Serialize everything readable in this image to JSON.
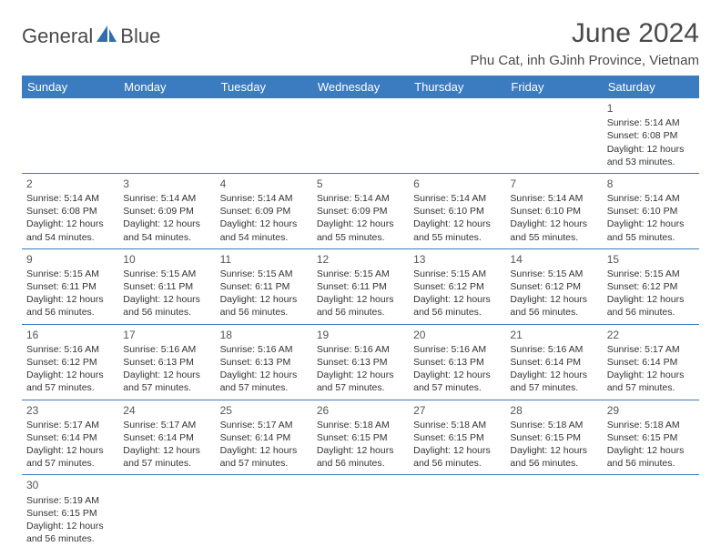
{
  "brand": {
    "text1": "General",
    "text2": "Blue",
    "icon_color": "#2f6fb0",
    "text_color": "#4a4a4a"
  },
  "title": "June 2024",
  "location": "Phu Cat, inh GJinh Province, Vietnam",
  "header_bg": "#3b7bbf",
  "header_text_color": "#ffffff",
  "border_color": "#3b7bbf",
  "cell_text_color": "#333333",
  "day_headers": [
    "Sunday",
    "Monday",
    "Tuesday",
    "Wednesday",
    "Thursday",
    "Friday",
    "Saturday"
  ],
  "weeks": [
    [
      null,
      null,
      null,
      null,
      null,
      null,
      {
        "n": "1",
        "sr": "5:14 AM",
        "ss": "6:08 PM",
        "dl": "12 hours and 53 minutes."
      }
    ],
    [
      {
        "n": "2",
        "sr": "5:14 AM",
        "ss": "6:08 PM",
        "dl": "12 hours and 54 minutes."
      },
      {
        "n": "3",
        "sr": "5:14 AM",
        "ss": "6:09 PM",
        "dl": "12 hours and 54 minutes."
      },
      {
        "n": "4",
        "sr": "5:14 AM",
        "ss": "6:09 PM",
        "dl": "12 hours and 54 minutes."
      },
      {
        "n": "5",
        "sr": "5:14 AM",
        "ss": "6:09 PM",
        "dl": "12 hours and 55 minutes."
      },
      {
        "n": "6",
        "sr": "5:14 AM",
        "ss": "6:10 PM",
        "dl": "12 hours and 55 minutes."
      },
      {
        "n": "7",
        "sr": "5:14 AM",
        "ss": "6:10 PM",
        "dl": "12 hours and 55 minutes."
      },
      {
        "n": "8",
        "sr": "5:14 AM",
        "ss": "6:10 PM",
        "dl": "12 hours and 55 minutes."
      }
    ],
    [
      {
        "n": "9",
        "sr": "5:15 AM",
        "ss": "6:11 PM",
        "dl": "12 hours and 56 minutes."
      },
      {
        "n": "10",
        "sr": "5:15 AM",
        "ss": "6:11 PM",
        "dl": "12 hours and 56 minutes."
      },
      {
        "n": "11",
        "sr": "5:15 AM",
        "ss": "6:11 PM",
        "dl": "12 hours and 56 minutes."
      },
      {
        "n": "12",
        "sr": "5:15 AM",
        "ss": "6:11 PM",
        "dl": "12 hours and 56 minutes."
      },
      {
        "n": "13",
        "sr": "5:15 AM",
        "ss": "6:12 PM",
        "dl": "12 hours and 56 minutes."
      },
      {
        "n": "14",
        "sr": "5:15 AM",
        "ss": "6:12 PM",
        "dl": "12 hours and 56 minutes."
      },
      {
        "n": "15",
        "sr": "5:15 AM",
        "ss": "6:12 PM",
        "dl": "12 hours and 56 minutes."
      }
    ],
    [
      {
        "n": "16",
        "sr": "5:16 AM",
        "ss": "6:12 PM",
        "dl": "12 hours and 57 minutes."
      },
      {
        "n": "17",
        "sr": "5:16 AM",
        "ss": "6:13 PM",
        "dl": "12 hours and 57 minutes."
      },
      {
        "n": "18",
        "sr": "5:16 AM",
        "ss": "6:13 PM",
        "dl": "12 hours and 57 minutes."
      },
      {
        "n": "19",
        "sr": "5:16 AM",
        "ss": "6:13 PM",
        "dl": "12 hours and 57 minutes."
      },
      {
        "n": "20",
        "sr": "5:16 AM",
        "ss": "6:13 PM",
        "dl": "12 hours and 57 minutes."
      },
      {
        "n": "21",
        "sr": "5:16 AM",
        "ss": "6:14 PM",
        "dl": "12 hours and 57 minutes."
      },
      {
        "n": "22",
        "sr": "5:17 AM",
        "ss": "6:14 PM",
        "dl": "12 hours and 57 minutes."
      }
    ],
    [
      {
        "n": "23",
        "sr": "5:17 AM",
        "ss": "6:14 PM",
        "dl": "12 hours and 57 minutes."
      },
      {
        "n": "24",
        "sr": "5:17 AM",
        "ss": "6:14 PM",
        "dl": "12 hours and 57 minutes."
      },
      {
        "n": "25",
        "sr": "5:17 AM",
        "ss": "6:14 PM",
        "dl": "12 hours and 57 minutes."
      },
      {
        "n": "26",
        "sr": "5:18 AM",
        "ss": "6:15 PM",
        "dl": "12 hours and 56 minutes."
      },
      {
        "n": "27",
        "sr": "5:18 AM",
        "ss": "6:15 PM",
        "dl": "12 hours and 56 minutes."
      },
      {
        "n": "28",
        "sr": "5:18 AM",
        "ss": "6:15 PM",
        "dl": "12 hours and 56 minutes."
      },
      {
        "n": "29",
        "sr": "5:18 AM",
        "ss": "6:15 PM",
        "dl": "12 hours and 56 minutes."
      }
    ],
    [
      {
        "n": "30",
        "sr": "5:19 AM",
        "ss": "6:15 PM",
        "dl": "12 hours and 56 minutes."
      },
      null,
      null,
      null,
      null,
      null,
      null
    ]
  ],
  "labels": {
    "sunrise": "Sunrise: ",
    "sunset": "Sunset: ",
    "daylight": "Daylight: "
  }
}
